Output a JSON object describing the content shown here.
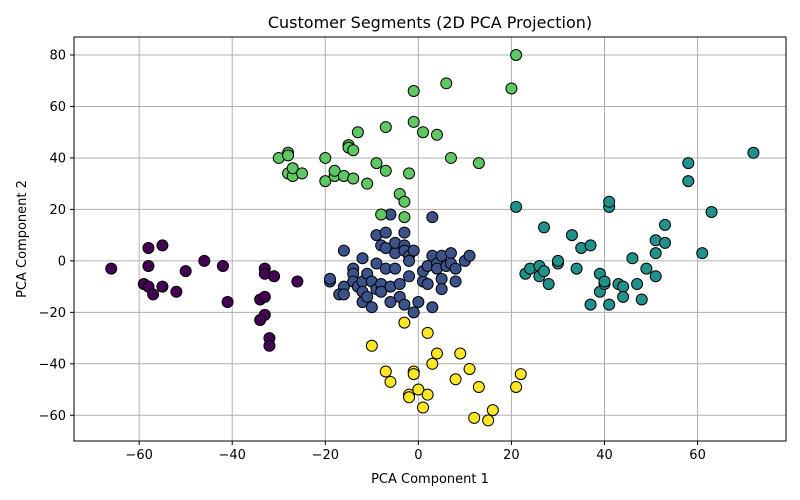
{
  "chart_data": {
    "type": "scatter",
    "title": "Customer Segments (2D PCA Projection)",
    "xlabel": "PCA Component 1",
    "ylabel": "PCA Component 2",
    "xlim": [
      -74,
      79
    ],
    "ylim": [
      -70,
      87
    ],
    "xticks": [
      -60,
      -40,
      -20,
      0,
      20,
      40,
      60
    ],
    "yticks": [
      -60,
      -40,
      -20,
      0,
      20,
      40,
      60,
      80
    ],
    "xtick_labels": [
      "−60",
      "−40",
      "−20",
      "0",
      "20",
      "40",
      "60"
    ],
    "ytick_labels": [
      "−60",
      "−40",
      "−20",
      "0",
      "20",
      "40",
      "60",
      "80"
    ],
    "grid": true,
    "series": [
      {
        "color": "#440154",
        "points": [
          [
            -66,
            -3
          ],
          [
            -58,
            5
          ],
          [
            -55,
            6
          ],
          [
            -58,
            -2
          ],
          [
            -50,
            -4
          ],
          [
            -46,
            0
          ],
          [
            -42,
            -2
          ],
          [
            -33,
            -3
          ],
          [
            -33,
            -5
          ],
          [
            -31,
            -6
          ],
          [
            -26,
            -8
          ],
          [
            -59,
            -9
          ],
          [
            -58,
            -10
          ],
          [
            -55,
            -10
          ],
          [
            -57,
            -13
          ],
          [
            -52,
            -12
          ],
          [
            -41,
            -16
          ],
          [
            -34,
            -15
          ],
          [
            -33,
            -14
          ],
          [
            -33,
            -21
          ],
          [
            -34,
            -23
          ],
          [
            -32,
            -30
          ],
          [
            -32,
            -33
          ]
        ]
      },
      {
        "color": "#3b528b",
        "points": [
          [
            -19,
            -8
          ],
          [
            -19,
            -7
          ],
          [
            -16,
            4
          ],
          [
            -16,
            -10
          ],
          [
            -17,
            -13
          ],
          [
            -16,
            -13
          ],
          [
            -14,
            -3
          ],
          [
            -14,
            -5
          ],
          [
            -14,
            -8
          ],
          [
            -13,
            -10
          ],
          [
            -12,
            1
          ],
          [
            -12,
            -8
          ],
          [
            -12,
            -12
          ],
          [
            -12,
            -16
          ],
          [
            -11,
            -5
          ],
          [
            -11,
            -14
          ],
          [
            -10,
            -8
          ],
          [
            -10,
            -18
          ],
          [
            -9,
            10
          ],
          [
            -9,
            -1
          ],
          [
            -9,
            -11
          ],
          [
            -8,
            6
          ],
          [
            -8,
            -9
          ],
          [
            -8,
            -12
          ],
          [
            -7,
            11
          ],
          [
            -7,
            5
          ],
          [
            -7,
            -3
          ],
          [
            -6,
            -16
          ],
          [
            -6,
            -10
          ],
          [
            -6,
            18
          ],
          [
            -5,
            3
          ],
          [
            -5,
            7
          ],
          [
            -5,
            -3
          ],
          [
            -4,
            -9
          ],
          [
            -4,
            -14
          ],
          [
            -3,
            11
          ],
          [
            -3,
            6
          ],
          [
            -3,
            4
          ],
          [
            -3,
            -17
          ],
          [
            -2,
            2
          ],
          [
            -2,
            0
          ],
          [
            -2,
            -6
          ],
          [
            -1,
            4
          ],
          [
            -1,
            -20
          ],
          [
            0,
            -16
          ],
          [
            1,
            -8
          ],
          [
            1,
            -4
          ],
          [
            2,
            -2
          ],
          [
            2,
            -9
          ],
          [
            3,
            2
          ],
          [
            3,
            -18
          ],
          [
            3,
            17
          ],
          [
            4,
            -1
          ],
          [
            4,
            -3
          ],
          [
            5,
            2
          ],
          [
            5,
            -7
          ],
          [
            5,
            -11
          ],
          [
            6,
            -2
          ],
          [
            7,
            3
          ],
          [
            7,
            -1
          ],
          [
            8,
            -8
          ],
          [
            8,
            -3
          ],
          [
            10,
            0
          ],
          [
            11,
            2
          ]
        ]
      },
      {
        "color": "#21918c",
        "points": [
          [
            21,
            21
          ],
          [
            23,
            -5
          ],
          [
            24,
            -3
          ],
          [
            26,
            -6
          ],
          [
            26,
            -2
          ],
          [
            27,
            -4
          ],
          [
            27,
            13
          ],
          [
            28,
            -9
          ],
          [
            30,
            -1
          ],
          [
            30,
            0
          ],
          [
            33,
            10
          ],
          [
            34,
            -3
          ],
          [
            35,
            5
          ],
          [
            37,
            -17
          ],
          [
            37,
            6
          ],
          [
            39,
            -5
          ],
          [
            39,
            -12
          ],
          [
            40,
            -9
          ],
          [
            40,
            -8
          ],
          [
            41,
            21
          ],
          [
            41,
            23
          ],
          [
            41,
            -17
          ],
          [
            43,
            -9
          ],
          [
            44,
            -10
          ],
          [
            44,
            -14
          ],
          [
            46,
            1
          ],
          [
            47,
            -9
          ],
          [
            48,
            -15
          ],
          [
            49,
            -3
          ],
          [
            51,
            3
          ],
          [
            51,
            -6
          ],
          [
            51,
            8
          ],
          [
            53,
            14
          ],
          [
            53,
            7
          ],
          [
            58,
            38
          ],
          [
            58,
            31
          ],
          [
            61,
            3
          ],
          [
            63,
            19
          ],
          [
            72,
            42
          ]
        ]
      },
      {
        "color": "#5ec962",
        "points": [
          [
            -30,
            40
          ],
          [
            -28,
            42
          ],
          [
            -28,
            41
          ],
          [
            -28,
            34
          ],
          [
            -27,
            33
          ],
          [
            -27,
            36
          ],
          [
            -25,
            34
          ],
          [
            -20,
            40
          ],
          [
            -20,
            31
          ],
          [
            -18,
            33
          ],
          [
            -18,
            35
          ],
          [
            -16,
            33
          ],
          [
            -15,
            45
          ],
          [
            -15,
            44
          ],
          [
            -14,
            32
          ],
          [
            -14,
            43
          ],
          [
            -13,
            50
          ],
          [
            -11,
            30
          ],
          [
            -9,
            38
          ],
          [
            -8,
            18
          ],
          [
            -7,
            52
          ],
          [
            -7,
            35
          ],
          [
            -4,
            26
          ],
          [
            -3,
            23
          ],
          [
            -3,
            17
          ],
          [
            -2,
            34
          ],
          [
            -1,
            54
          ],
          [
            -1,
            66
          ],
          [
            1,
            50
          ],
          [
            4,
            49
          ],
          [
            6,
            69
          ],
          [
            7,
            40
          ],
          [
            13,
            38
          ],
          [
            20,
            67
          ],
          [
            21,
            80
          ]
        ]
      },
      {
        "color": "#fde725",
        "points": [
          [
            -10,
            -33
          ],
          [
            -7,
            -43
          ],
          [
            -6,
            -47
          ],
          [
            -3,
            -24
          ],
          [
            -2,
            -52
          ],
          [
            -2,
            -53
          ],
          [
            -1,
            -43
          ],
          [
            -1,
            -44
          ],
          [
            0,
            -50
          ],
          [
            1,
            -57
          ],
          [
            2,
            -52
          ],
          [
            2,
            -28
          ],
          [
            3,
            -40
          ],
          [
            4,
            -36
          ],
          [
            8,
            -46
          ],
          [
            9,
            -36
          ],
          [
            11,
            -42
          ],
          [
            12,
            -61
          ],
          [
            13,
            -49
          ],
          [
            15,
            -62
          ],
          [
            16,
            -58
          ],
          [
            21,
            -49
          ],
          [
            22,
            -44
          ]
        ]
      }
    ]
  }
}
